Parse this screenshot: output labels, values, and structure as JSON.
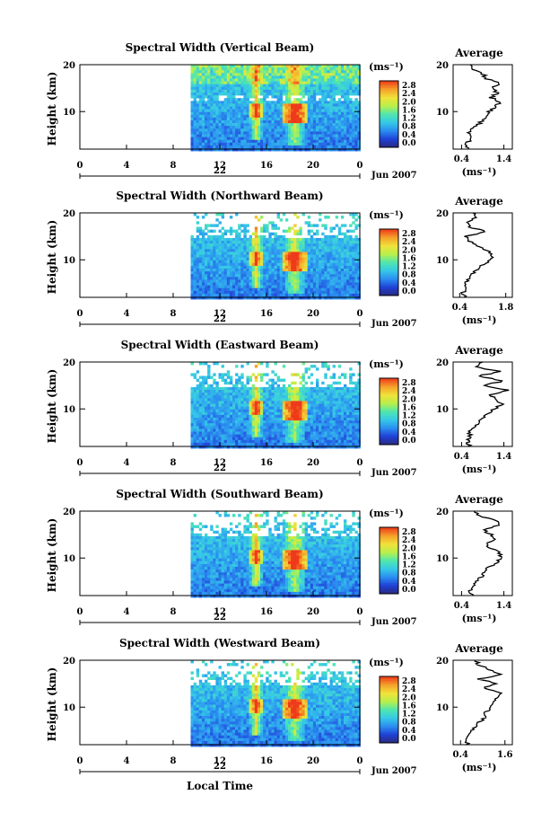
{
  "figure": {
    "date_label": "Jun 2007",
    "x_axis_title": "Local Time",
    "colorbar_unit": "(ms⁻¹)",
    "colorbar_ticks": [
      "2.8",
      "2.4",
      "2.0",
      "1.6",
      "1.2",
      "0.8",
      "0.4",
      "0.0"
    ],
    "colors": {
      "scale": [
        "#2a2a7a",
        "#1f3fd6",
        "#2a8cf0",
        "#35c8e8",
        "#4ee6b0",
        "#b8f04a",
        "#f0e23a",
        "#f5a22a",
        "#ee3a1a"
      ]
    }
  },
  "chart_data": [
    {
      "type": "heatmap",
      "title": "Spectral Width (Vertical Beam)",
      "ylabel": "Height (km)",
      "xlabel": "",
      "x_ticks": [
        "0",
        "4",
        "8",
        "12",
        "16",
        "20",
        "0"
      ],
      "day_label": "22",
      "y_ticks": [
        "20",
        "10"
      ],
      "ylim": [
        2,
        20
      ],
      "data_start_hour": 9.5,
      "colorbar_range": [
        0.0,
        3.0
      ],
      "average": {
        "title": "Average",
        "xlabel": "(ms⁻¹)",
        "x_ticks": [
          "0.4",
          "1.4"
        ],
        "xlim": [
          0.2,
          1.6
        ],
        "height_km": [
          2,
          3,
          4,
          5,
          6,
          7,
          8,
          9,
          10,
          11,
          12,
          13,
          14,
          15,
          16,
          17,
          18,
          19,
          20
        ],
        "values": [
          0.55,
          0.5,
          0.6,
          0.55,
          0.62,
          0.75,
          0.9,
          0.95,
          1.05,
          1.2,
          1.3,
          1.1,
          1.25,
          1.15,
          1.3,
          1.0,
          0.9,
          0.7,
          0.6
        ]
      }
    },
    {
      "type": "heatmap",
      "title": "Spectral Width (Northward Beam)",
      "ylabel": "Height (km)",
      "xlabel": "",
      "x_ticks": [
        "0",
        "4",
        "8",
        "12",
        "16",
        "20",
        "0"
      ],
      "day_label": "22",
      "y_ticks": [
        "20",
        "10"
      ],
      "ylim": [
        2,
        20
      ],
      "data_start_hour": 9.5,
      "colorbar_range": [
        0.0,
        3.0
      ],
      "average": {
        "title": "Average",
        "xlabel": "(ms⁻¹)",
        "x_ticks": [
          "0.4",
          "1.8"
        ],
        "xlim": [
          0.2,
          2.0
        ],
        "height_km": [
          2,
          3,
          4,
          5,
          6,
          7,
          8,
          9,
          10,
          11,
          12,
          13,
          14,
          15,
          16,
          17,
          18,
          19,
          20
        ],
        "values": [
          0.55,
          0.5,
          0.6,
          0.58,
          0.7,
          0.8,
          0.95,
          1.1,
          1.35,
          1.4,
          1.25,
          0.9,
          0.7,
          0.6,
          1.2,
          0.7,
          0.65,
          0.9,
          0.8
        ]
      }
    },
    {
      "type": "heatmap",
      "title": "Spectral Width (Eastward Beam)",
      "ylabel": "Height (km)",
      "xlabel": "",
      "x_ticks": [
        "0",
        "4",
        "8",
        "12",
        "16",
        "20",
        "0"
      ],
      "day_label": "22",
      "y_ticks": [
        "20",
        "10"
      ],
      "ylim": [
        2,
        20
      ],
      "data_start_hour": 9.5,
      "colorbar_range": [
        0.0,
        3.0
      ],
      "average": {
        "title": "Average",
        "xlabel": "(ms⁻¹)",
        "x_ticks": [
          "0.4",
          "1.4"
        ],
        "xlim": [
          0.2,
          1.6
        ],
        "height_km": [
          2,
          3,
          4,
          5,
          6,
          7,
          8,
          9,
          10,
          11,
          12,
          13,
          14,
          15,
          16,
          17,
          18,
          19,
          20
        ],
        "values": [
          0.6,
          0.55,
          0.6,
          0.58,
          0.7,
          0.8,
          0.9,
          1.0,
          1.2,
          1.35,
          1.25,
          1.1,
          1.5,
          0.9,
          1.4,
          0.8,
          1.3,
          0.7,
          0.9
        ]
      }
    },
    {
      "type": "heatmap",
      "title": "Spectral Width (Southward Beam)",
      "ylabel": "Height (km)",
      "xlabel": "",
      "x_ticks": [
        "0",
        "4",
        "8",
        "12",
        "16",
        "20",
        "0"
      ],
      "day_label": "22",
      "y_ticks": [
        "20",
        "10"
      ],
      "ylim": [
        2,
        20
      ],
      "data_start_hour": 9.5,
      "colorbar_range": [
        0.0,
        3.0
      ],
      "average": {
        "title": "Average",
        "xlabel": "(ms⁻¹)",
        "x_ticks": [
          "0.4",
          "1.4"
        ],
        "xlim": [
          0.2,
          1.6
        ],
        "height_km": [
          2,
          3,
          4,
          5,
          6,
          7,
          8,
          9,
          10,
          11,
          12,
          13,
          14,
          15,
          16,
          17,
          18,
          19,
          20
        ],
        "values": [
          0.65,
          0.6,
          0.68,
          0.75,
          0.85,
          0.95,
          1.05,
          1.2,
          1.35,
          1.3,
          1.1,
          1.0,
          1.2,
          1.1,
          0.9,
          1.3,
          1.2,
          0.8,
          0.7
        ]
      }
    },
    {
      "type": "heatmap",
      "title": "Spectral Width (Westward Beam)",
      "ylabel": "Height (km)",
      "xlabel": "Local Time",
      "x_ticks": [
        "0",
        "4",
        "8",
        "12",
        "16",
        "20",
        "0"
      ],
      "day_label": "22",
      "y_ticks": [
        "20",
        "10"
      ],
      "ylim": [
        2,
        20
      ],
      "data_start_hour": 9.5,
      "colorbar_range": [
        0.0,
        3.0
      ],
      "average": {
        "title": "Average",
        "xlabel": "(ms⁻¹)",
        "x_ticks": [
          "0.4",
          "1.6"
        ],
        "xlim": [
          0.2,
          1.8
        ],
        "height_km": [
          2,
          3,
          4,
          5,
          6,
          7,
          8,
          9,
          10,
          11,
          12,
          13,
          14,
          15,
          16,
          17,
          18,
          19,
          20
        ],
        "values": [
          0.6,
          0.55,
          0.62,
          0.7,
          0.8,
          0.95,
          1.05,
          1.1,
          1.2,
          1.3,
          1.35,
          1.5,
          1.0,
          1.4,
          0.9,
          1.5,
          1.2,
          0.9,
          0.8
        ]
      }
    }
  ]
}
